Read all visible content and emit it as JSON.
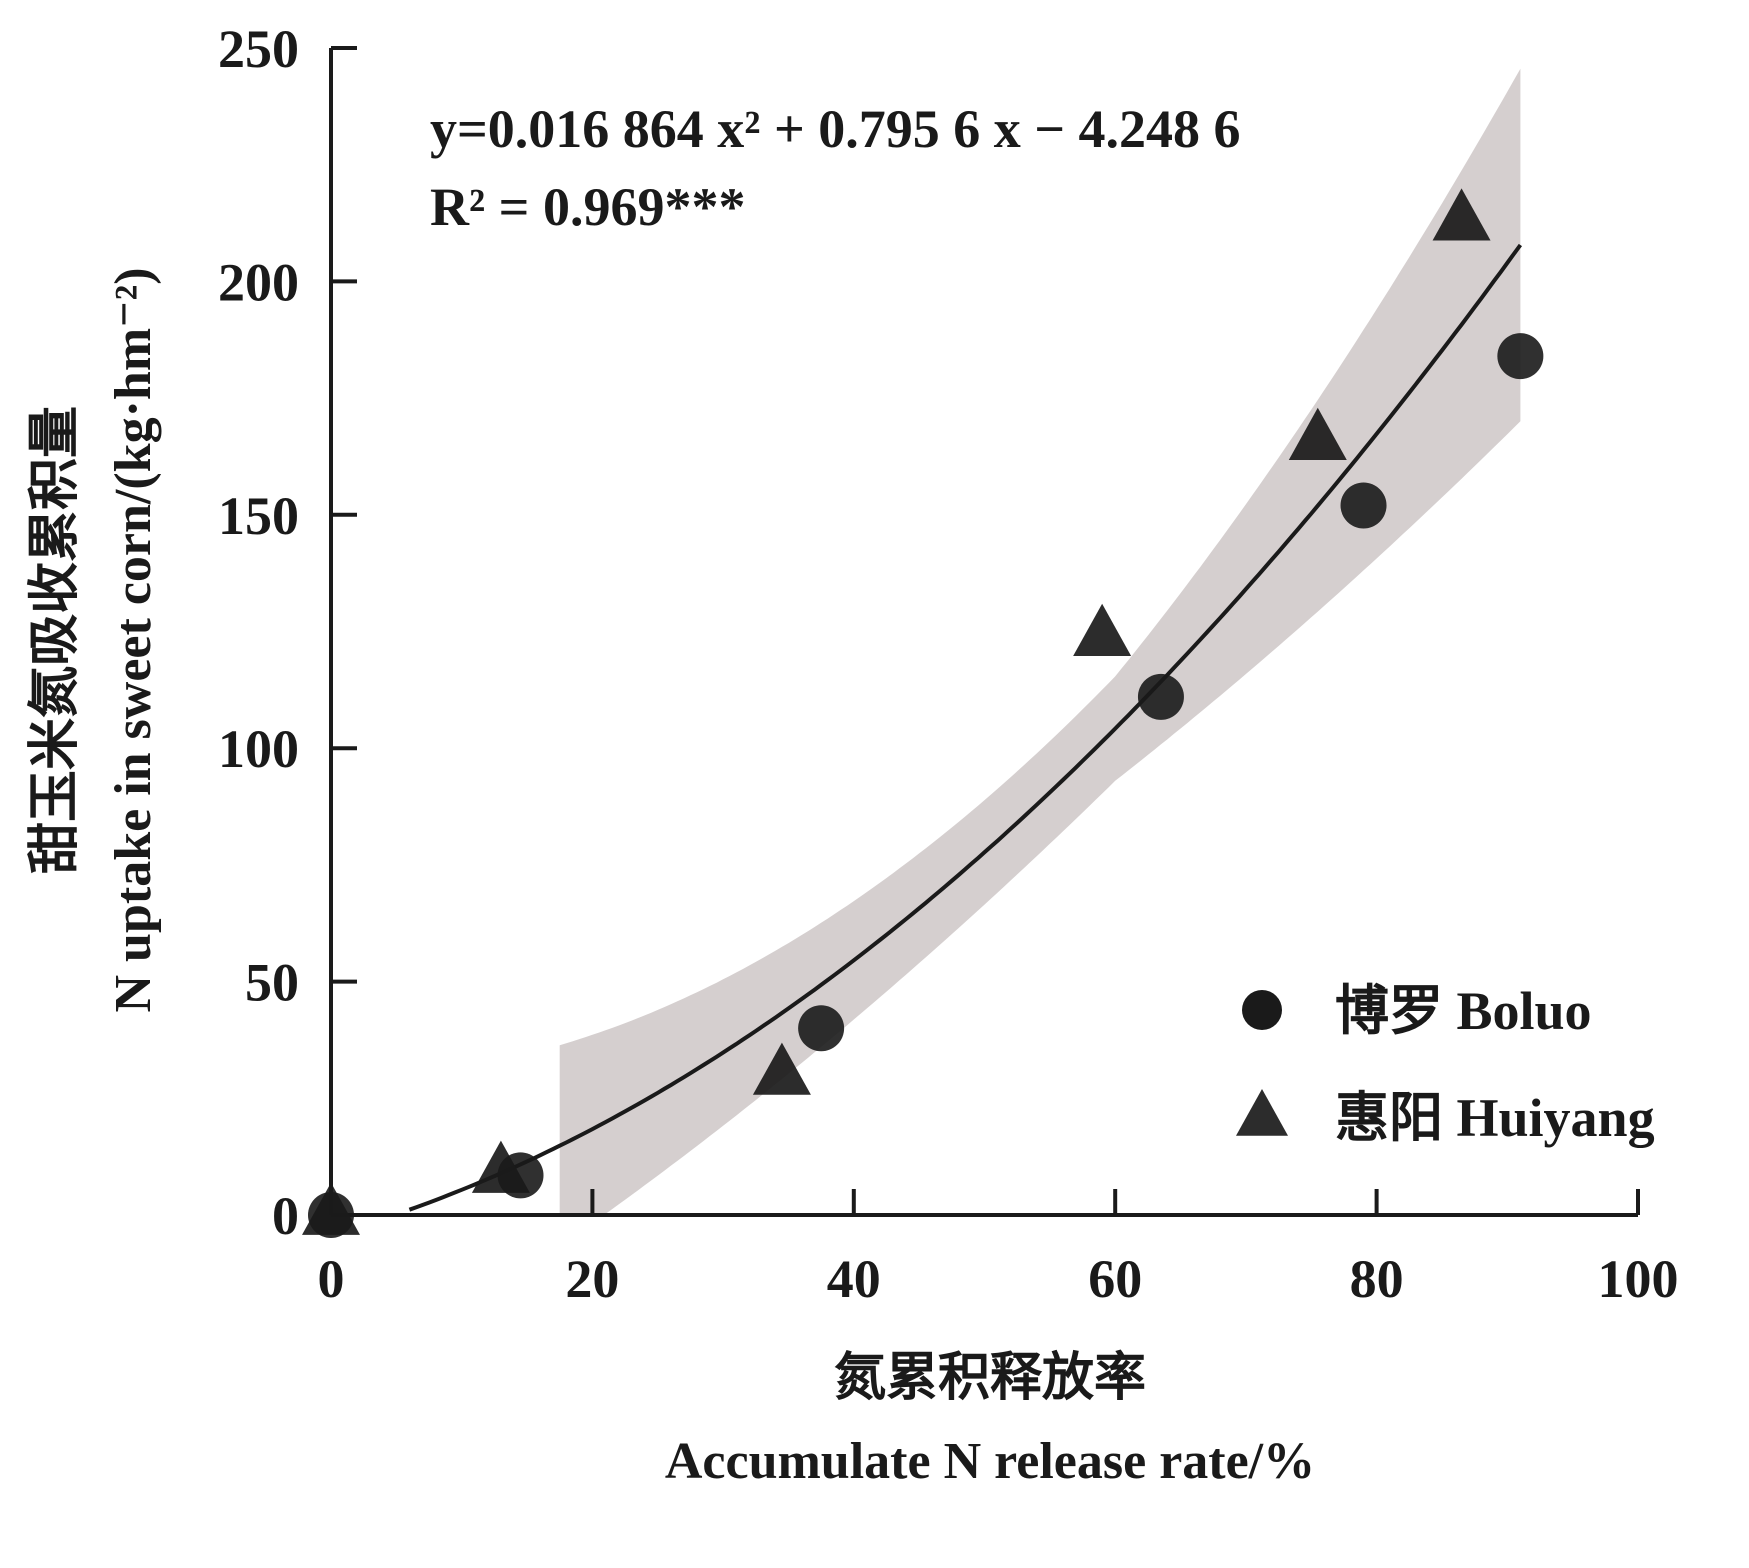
{
  "chart_data": {
    "type": "scatter",
    "title": "",
    "xlabel_cn": "氮累积释放率",
    "xlabel_en": "Accumulate N release rate/%",
    "ylabel_cn": "甜玉米氮吸收累积量",
    "ylabel_en": "N uptake in sweet corn/(kg·hm⁻²)",
    "xlim": [
      0,
      100
    ],
    "ylim": [
      0,
      250
    ],
    "x_ticks": [
      "0",
      "20",
      "40",
      "60",
      "80",
      "100"
    ],
    "y_ticks": [
      "0",
      "50",
      "100",
      "150",
      "200",
      "250"
    ],
    "grid": false,
    "legend_position": "bottom-right",
    "series": [
      {
        "name": "博罗 Boluo",
        "marker": "circle",
        "color": "#1a1a1a",
        "points": [
          {
            "x": 0,
            "y": 0
          },
          {
            "x": 14.5,
            "y": 8.5
          },
          {
            "x": 37.5,
            "y": 40
          },
          {
            "x": 63.5,
            "y": 111
          },
          {
            "x": 79,
            "y": 152
          },
          {
            "x": 91,
            "y": 184
          }
        ]
      },
      {
        "name": "惠阳 Huiyang",
        "marker": "triangle",
        "color": "#1a1a1a",
        "points": [
          {
            "x": 0,
            "y": 0
          },
          {
            "x": 13,
            "y": 9
          },
          {
            "x": 34.5,
            "y": 30
          },
          {
            "x": 59,
            "y": 124
          },
          {
            "x": 75.5,
            "y": 166
          },
          {
            "x": 86.5,
            "y": 213
          }
        ]
      }
    ],
    "fit": {
      "equation_lines": [
        "y=0.016 864 x² + 0.795 6 x − 4.248 6",
        "R² = 0.969***"
      ],
      "a": 0.016864,
      "b": 0.7956,
      "c": -4.2486,
      "x_range": [
        6,
        91
      ],
      "ci_x_range": [
        17.5,
        91
      ],
      "ci_color": "#d5cfcf"
    }
  }
}
